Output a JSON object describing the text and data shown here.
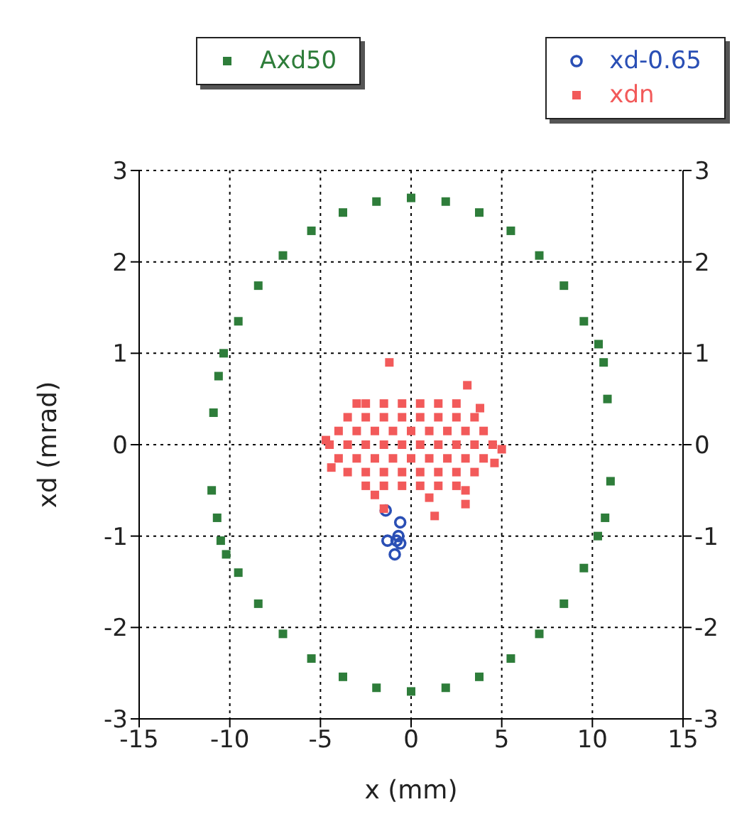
{
  "chart_data": {
    "type": "scatter",
    "xlabel": "x (mm)",
    "ylabel": "xd (mrad)",
    "xlim": [
      -15,
      15
    ],
    "xticks": [
      -15,
      -10,
      -5,
      0,
      5,
      10,
      15
    ],
    "ylim": [
      -3,
      3
    ],
    "yticks": [
      -3,
      -2,
      -1,
      0,
      1,
      2,
      3
    ],
    "y2lim": [
      -3,
      3
    ],
    "y2ticks": [
      -3,
      -2,
      -1,
      0,
      1,
      2,
      3
    ],
    "grid": true,
    "legend": "top",
    "series": [
      {
        "name": "Axd50",
        "color": "#2e7d3a",
        "marker": "square",
        "x": [
          10.83,
          10.62,
          10.34,
          9.53,
          8.43,
          7.07,
          5.5,
          3.76,
          1.91,
          0,
          -1.91,
          -3.76,
          -5.5,
          -7.07,
          -8.43,
          -9.53,
          -10.34,
          -10.62,
          -10.9,
          -11.0,
          -10.7,
          -10.5,
          -10.2,
          -9.53,
          -8.43,
          -7.07,
          -5.5,
          -3.76,
          -1.91,
          0,
          1.91,
          3.76,
          5.5,
          7.07,
          8.43,
          9.53,
          10.3,
          10.7,
          11.0
        ],
        "values": [
          0.5,
          0.9,
          1.1,
          1.35,
          1.74,
          2.07,
          2.34,
          2.54,
          2.66,
          2.7,
          2.66,
          2.54,
          2.34,
          2.07,
          1.74,
          1.35,
          1.0,
          0.75,
          0.35,
          -0.5,
          -0.8,
          -1.05,
          -1.2,
          -1.4,
          -1.74,
          -2.07,
          -2.34,
          -2.54,
          -2.66,
          -2.7,
          -2.66,
          -2.54,
          -2.34,
          -2.07,
          -1.74,
          -1.35,
          -1.0,
          -0.8,
          -0.4
        ]
      },
      {
        "name": "xd-0.65",
        "color": "#2a4fb5",
        "marker": "circle",
        "x": [
          -1.4,
          -0.6,
          -1.3,
          -0.8,
          -0.6,
          -0.9,
          -0.7
        ],
        "values": [
          -0.72,
          -0.85,
          -1.05,
          -1.05,
          -1.08,
          -1.2,
          -1.0
        ]
      },
      {
        "name": "xdn",
        "color": "#f25a5a",
        "marker": "square",
        "x": [
          -2.5,
          -1.5,
          -0.5,
          0.5,
          1.5,
          2.5,
          -3.5,
          -2.5,
          -1.5,
          -0.5,
          0.5,
          1.5,
          2.5,
          3.5,
          -4,
          -3,
          -2,
          -1,
          0,
          1,
          2,
          3,
          4,
          -4.5,
          -3.5,
          -2.5,
          -1.5,
          -0.5,
          0.5,
          1.5,
          2.5,
          3.5,
          4.5,
          -4,
          -3,
          -2,
          -1,
          0,
          1,
          2,
          3,
          4,
          -3.5,
          -2.5,
          -1.5,
          -0.5,
          0.5,
          1.5,
          2.5,
          3.5,
          -2.5,
          -1.5,
          -0.5,
          0.5,
          1.5,
          2.5,
          5,
          -4.7,
          4.6,
          -4.4,
          3.8,
          -3,
          3,
          -2,
          1,
          -1.2,
          3.1,
          -1.5,
          1.3,
          3
        ],
        "values": [
          0.45,
          0.45,
          0.45,
          0.45,
          0.45,
          0.45,
          0.3,
          0.3,
          0.3,
          0.3,
          0.3,
          0.3,
          0.3,
          0.3,
          0.15,
          0.15,
          0.15,
          0.15,
          0.15,
          0.15,
          0.15,
          0.15,
          0.15,
          0,
          0,
          0,
          0,
          0,
          0,
          0,
          0,
          0,
          0,
          -0.15,
          -0.15,
          -0.15,
          -0.15,
          -0.15,
          -0.15,
          -0.15,
          -0.15,
          -0.15,
          -0.3,
          -0.3,
          -0.3,
          -0.3,
          -0.3,
          -0.3,
          -0.3,
          -0.3,
          -0.45,
          -0.45,
          -0.45,
          -0.45,
          -0.45,
          -0.45,
          -0.05,
          0.05,
          -0.2,
          -0.25,
          0.4,
          0.45,
          -0.5,
          -0.55,
          -0.58,
          0.9,
          0.65,
          -0.7,
          -0.78,
          -0.65
        ]
      }
    ]
  }
}
